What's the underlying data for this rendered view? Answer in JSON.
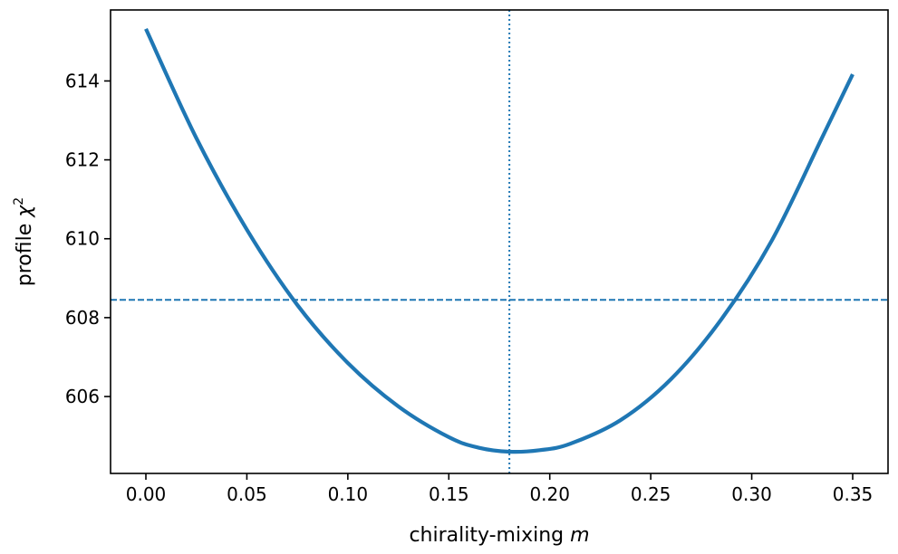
{
  "chart_data": {
    "type": "line",
    "xlabel": "chirality-mixing",
    "xlabel_var": "m",
    "ylabel": "profile",
    "ylabel_var": "χ",
    "ylabel_exp": "2",
    "xlim": [
      -0.0175,
      0.3675
    ],
    "ylim": [
      604.05,
      615.8
    ],
    "xticks": [
      0.0,
      0.05,
      0.1,
      0.15,
      0.2,
      0.25,
      0.3,
      0.35
    ],
    "xtick_labels": [
      "0.00",
      "0.05",
      "0.10",
      "0.15",
      "0.20",
      "0.25",
      "0.30",
      "0.35"
    ],
    "yticks": [
      606,
      608,
      610,
      612,
      614
    ],
    "ytick_labels": [
      "606",
      "608",
      "610",
      "612",
      "614"
    ],
    "grid": false,
    "series": [
      {
        "color": "#1f77b4",
        "x": [
          0.0,
          0.025,
          0.05,
          0.075,
          0.1,
          0.125,
          0.15,
          0.165,
          0.18,
          0.195,
          0.21,
          0.235,
          0.26,
          0.285,
          0.31,
          0.335,
          0.35
        ],
        "y": [
          615.32,
          612.55,
          610.23,
          608.32,
          606.85,
          605.75,
          604.97,
          604.7,
          604.6,
          604.64,
          604.8,
          605.4,
          606.44,
          607.96,
          609.96,
          612.58,
          614.17
        ]
      }
    ],
    "hline": {
      "y": 608.45,
      "style": "dashed",
      "color": "#1f77b4"
    },
    "vline": {
      "x": 0.18,
      "style": "dotted",
      "color": "#1f77b4"
    }
  }
}
